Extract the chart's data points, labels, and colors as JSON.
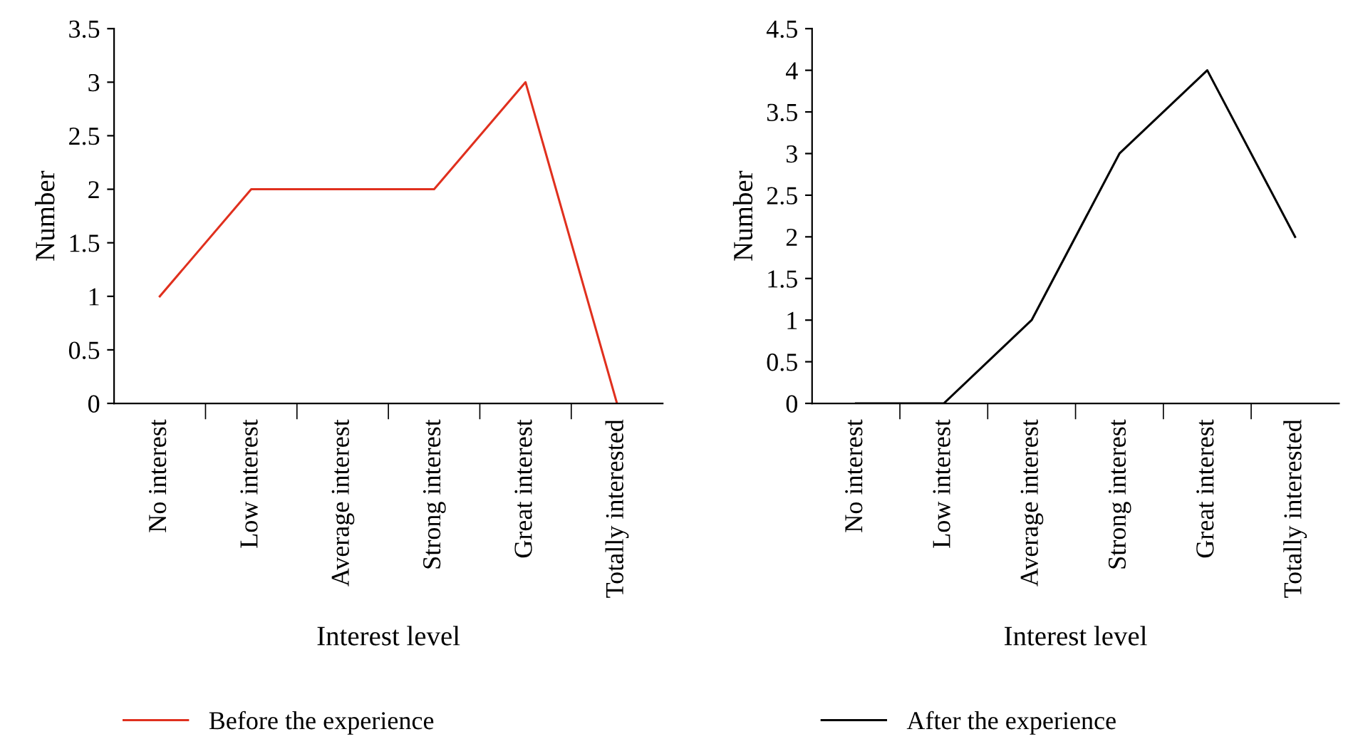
{
  "chart_data": [
    {
      "type": "line",
      "xlabel": "Interest level",
      "ylabel": "Number",
      "categories": [
        "No interest",
        "Low interest",
        "Average interest",
        "Strong interest",
        "Great interest",
        "Totally interested"
      ],
      "series": [
        {
          "name": "Before the experience",
          "color": "#e0301e",
          "values": [
            1,
            2,
            2,
            2,
            3,
            0
          ]
        }
      ],
      "ylim": [
        0,
        3.5
      ],
      "yticks": [
        0,
        0.5,
        1,
        1.5,
        2,
        2.5,
        3,
        3.5
      ],
      "grid": false,
      "legend": "bottom",
      "marker": "none",
      "line_style": "solid"
    },
    {
      "type": "line",
      "xlabel": "Interest level",
      "ylabel": "Number",
      "categories": [
        "No interest",
        "Low interest",
        "Average interest",
        "Strong interest",
        "Great interest",
        "Totally interested"
      ],
      "series": [
        {
          "name": "After the experience",
          "color": "#000000",
          "values": [
            0,
            0,
            1,
            3,
            4,
            2
          ]
        }
      ],
      "ylim": [
        0,
        4.5
      ],
      "yticks": [
        0,
        0.5,
        1,
        1.5,
        2,
        2.5,
        3,
        3.5,
        4,
        4.5
      ],
      "grid": false,
      "legend": "bottom",
      "marker": "none",
      "line_style": "solid"
    }
  ]
}
